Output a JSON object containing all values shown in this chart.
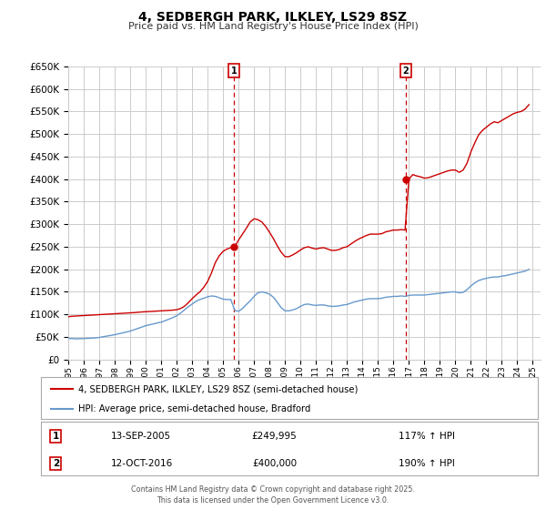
{
  "title": "4, SEDBERGH PARK, ILKLEY, LS29 8SZ",
  "subtitle": "Price paid vs. HM Land Registry's House Price Index (HPI)",
  "ylim": [
    0,
    650000
  ],
  "xlim_start": 1995.0,
  "xlim_end": 2025.5,
  "background_color": "#ffffff",
  "grid_color": "#cccccc",
  "red_line_color": "#cc0000",
  "blue_line_color": "#6699cc",
  "marker1_date": 2005.71,
  "marker1_value": 249995,
  "marker1_label": "1",
  "marker1_text": "13-SEP-2005",
  "marker1_price": "£249,995",
  "marker1_hpi": "117% ↑ HPI",
  "marker2_date": 2016.79,
  "marker2_value": 400000,
  "marker2_label": "2",
  "marker2_text": "12-OCT-2016",
  "marker2_price": "£400,000",
  "marker2_hpi": "190% ↑ HPI",
  "legend_red_label": "4, SEDBERGH PARK, ILKLEY, LS29 8SZ (semi-detached house)",
  "legend_blue_label": "HPI: Average price, semi-detached house, Bradford",
  "footer": "Contains HM Land Registry data © Crown copyright and database right 2025.\nThis data is licensed under the Open Government Licence v3.0.",
  "hpi_x": [
    1995.0,
    1995.25,
    1995.5,
    1995.75,
    1996.0,
    1996.25,
    1996.5,
    1996.75,
    1997.0,
    1997.25,
    1997.5,
    1997.75,
    1998.0,
    1998.25,
    1998.5,
    1998.75,
    1999.0,
    1999.25,
    1999.5,
    1999.75,
    2000.0,
    2000.25,
    2000.5,
    2000.75,
    2001.0,
    2001.25,
    2001.5,
    2001.75,
    2002.0,
    2002.25,
    2002.5,
    2002.75,
    2003.0,
    2003.25,
    2003.5,
    2003.75,
    2004.0,
    2004.25,
    2004.5,
    2004.75,
    2005.0,
    2005.25,
    2005.5,
    2005.75,
    2006.0,
    2006.25,
    2006.5,
    2006.75,
    2007.0,
    2007.25,
    2007.5,
    2007.75,
    2008.0,
    2008.25,
    2008.5,
    2008.75,
    2009.0,
    2009.25,
    2009.5,
    2009.75,
    2010.0,
    2010.25,
    2010.5,
    2010.75,
    2011.0,
    2011.25,
    2011.5,
    2011.75,
    2012.0,
    2012.25,
    2012.5,
    2012.75,
    2013.0,
    2013.25,
    2013.5,
    2013.75,
    2014.0,
    2014.25,
    2014.5,
    2014.75,
    2015.0,
    2015.25,
    2015.5,
    2015.75,
    2016.0,
    2016.25,
    2016.5,
    2016.75,
    2017.0,
    2017.25,
    2017.5,
    2017.75,
    2018.0,
    2018.25,
    2018.5,
    2018.75,
    2019.0,
    2019.25,
    2019.5,
    2019.75,
    2020.0,
    2020.25,
    2020.5,
    2020.75,
    2021.0,
    2021.25,
    2021.5,
    2021.75,
    2022.0,
    2022.25,
    2022.5,
    2022.75,
    2023.0,
    2023.25,
    2023.5,
    2023.75,
    2024.0,
    2024.25,
    2024.5,
    2024.75
  ],
  "hpi_y": [
    47000,
    46500,
    46000,
    46200,
    46500,
    47000,
    47500,
    48000,
    49000,
    50500,
    52000,
    53500,
    55000,
    57000,
    59000,
    61000,
    63000,
    66000,
    69000,
    72000,
    75000,
    77000,
    79000,
    81000,
    83000,
    86000,
    89500,
    93000,
    97000,
    103000,
    110000,
    117000,
    123000,
    129000,
    133000,
    136000,
    139000,
    141000,
    140000,
    137000,
    134000,
    133000,
    133000,
    109000,
    107000,
    113000,
    122000,
    130000,
    140000,
    148000,
    150000,
    148000,
    145000,
    138000,
    127000,
    115000,
    108000,
    108000,
    110000,
    113000,
    118000,
    122000,
    123000,
    121000,
    120000,
    121000,
    121000,
    119000,
    118000,
    118000,
    119000,
    121000,
    122000,
    125000,
    128000,
    130000,
    132000,
    134000,
    135000,
    135000,
    135000,
    136000,
    138000,
    139000,
    140000,
    140000,
    141000,
    140000,
    142000,
    143000,
    143000,
    143000,
    143000,
    144000,
    145000,
    146000,
    147000,
    148000,
    149000,
    150000,
    150000,
    148000,
    149000,
    155000,
    163000,
    170000,
    175000,
    178000,
    180000,
    182000,
    183000,
    183000,
    185000,
    186000,
    188000,
    190000,
    192000,
    194000,
    196000,
    200000
  ],
  "red_x": [
    1995.0,
    1995.25,
    1995.5,
    1995.75,
    1996.0,
    1996.25,
    1996.5,
    1996.75,
    1997.0,
    1997.25,
    1997.5,
    1997.75,
    1998.0,
    1998.25,
    1998.5,
    1998.75,
    1999.0,
    1999.25,
    1999.5,
    1999.75,
    2000.0,
    2000.25,
    2000.5,
    2000.75,
    2001.0,
    2001.25,
    2001.5,
    2001.75,
    2002.0,
    2002.25,
    2002.5,
    2002.75,
    2003.0,
    2003.25,
    2003.5,
    2003.75,
    2004.0,
    2004.25,
    2004.5,
    2004.75,
    2005.0,
    2005.25,
    2005.5,
    2005.75,
    2006.0,
    2006.25,
    2006.5,
    2006.75,
    2007.0,
    2007.25,
    2007.5,
    2007.75,
    2008.0,
    2008.25,
    2008.5,
    2008.75,
    2009.0,
    2009.25,
    2009.5,
    2009.75,
    2010.0,
    2010.25,
    2010.5,
    2010.75,
    2011.0,
    2011.25,
    2011.5,
    2011.75,
    2012.0,
    2012.25,
    2012.5,
    2012.75,
    2013.0,
    2013.25,
    2013.5,
    2013.75,
    2014.0,
    2014.25,
    2014.5,
    2014.75,
    2015.0,
    2015.25,
    2015.5,
    2015.75,
    2016.0,
    2016.25,
    2016.5,
    2016.75,
    2017.0,
    2017.25,
    2017.5,
    2017.75,
    2018.0,
    2018.25,
    2018.5,
    2018.75,
    2019.0,
    2019.25,
    2019.5,
    2019.75,
    2020.0,
    2020.25,
    2020.5,
    2020.75,
    2021.0,
    2021.25,
    2021.5,
    2021.75,
    2022.0,
    2022.25,
    2022.5,
    2022.75,
    2023.0,
    2023.25,
    2023.5,
    2023.75,
    2024.0,
    2024.25,
    2024.5,
    2024.75
  ],
  "red_y": [
    95000,
    96000,
    96500,
    97000,
    97500,
    98000,
    98500,
    99000,
    99500,
    100000,
    100500,
    101000,
    101500,
    102000,
    102500,
    103000,
    103500,
    104000,
    104800,
    105500,
    106000,
    106500,
    107000,
    107500,
    108000,
    108500,
    109000,
    109500,
    110500,
    113000,
    118000,
    126000,
    135000,
    143000,
    150000,
    160000,
    173000,
    192000,
    215000,
    230000,
    240000,
    245000,
    248000,
    249995,
    265000,
    278000,
    291000,
    305000,
    312000,
    310000,
    305000,
    295000,
    282000,
    268000,
    252000,
    238000,
    228000,
    228000,
    232000,
    237000,
    243000,
    248000,
    250000,
    247000,
    245000,
    247000,
    248000,
    245000,
    242000,
    242000,
    244000,
    248000,
    250000,
    256000,
    262000,
    267000,
    271000,
    275000,
    278000,
    278000,
    278000,
    279000,
    283000,
    285000,
    287000,
    287000,
    288000,
    287000,
    400000,
    410000,
    407000,
    405000,
    402000,
    403000,
    406000,
    409000,
    412000,
    415000,
    418000,
    420000,
    420000,
    415000,
    420000,
    435000,
    460000,
    480000,
    498000,
    508000,
    515000,
    522000,
    527000,
    525000,
    530000,
    535000,
    540000,
    545000,
    548000,
    550000,
    555000,
    565000
  ]
}
